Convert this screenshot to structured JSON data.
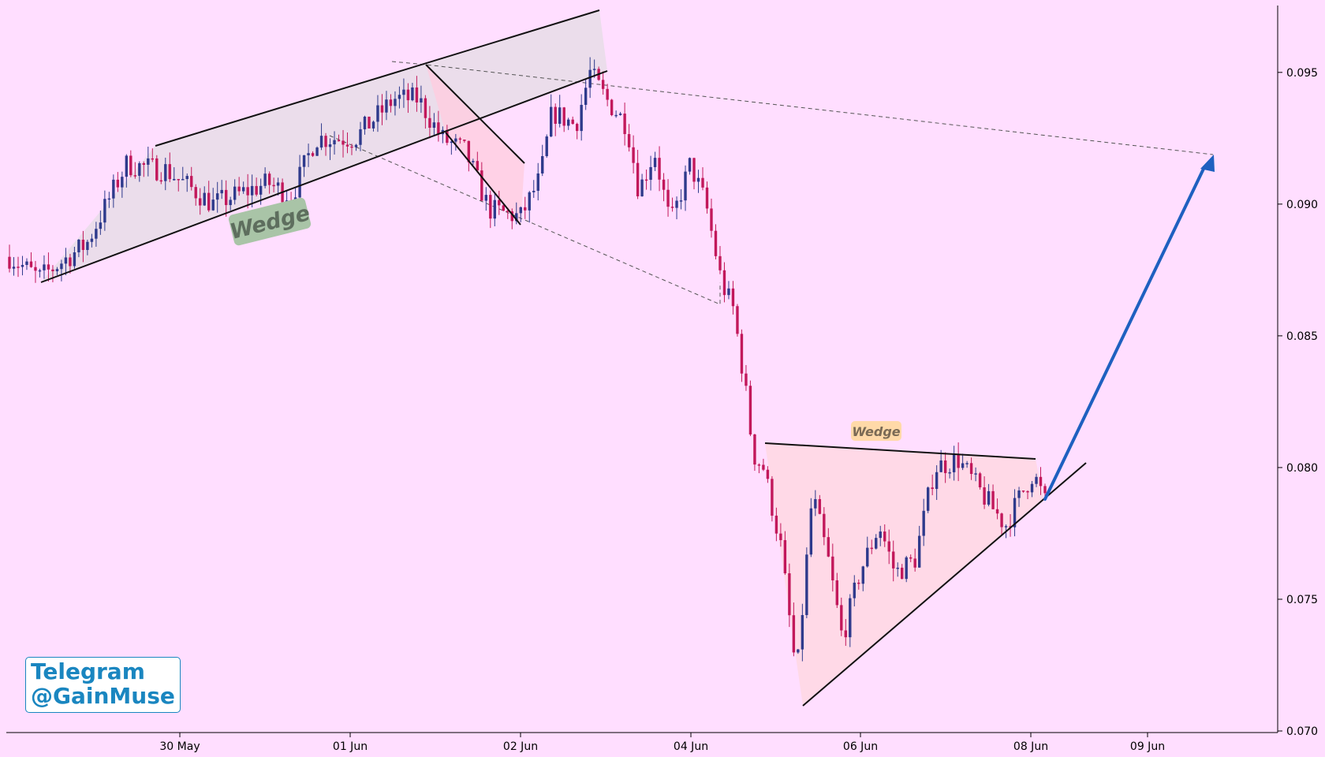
{
  "chart_data": {
    "type": "candlestick",
    "title": "",
    "xlabel": "",
    "ylabel": "",
    "ylim": [
      0.07,
      0.097
    ],
    "y_ticks": [
      "0.070",
      "0.075",
      "0.080",
      "0.085",
      "0.090",
      "0.095"
    ],
    "x_ticks": [
      "30 May",
      "01 Jun",
      "02 Jun",
      "04 Jun",
      "06 Jun",
      "08 Jun",
      "09 Jun"
    ],
    "colors": {
      "up": "#2e3a8c",
      "down": "#c2185b",
      "background": "#ffdeff",
      "projection": "#1e60c0"
    },
    "annotations": {
      "wedge_upper_label": "Wedge",
      "wedge_lower_label": "Wedge"
    },
    "projection_target": 0.0912,
    "candle_count": 240
  },
  "watermark": {
    "line1": "Telegram",
    "line2": "@GainMuse"
  }
}
